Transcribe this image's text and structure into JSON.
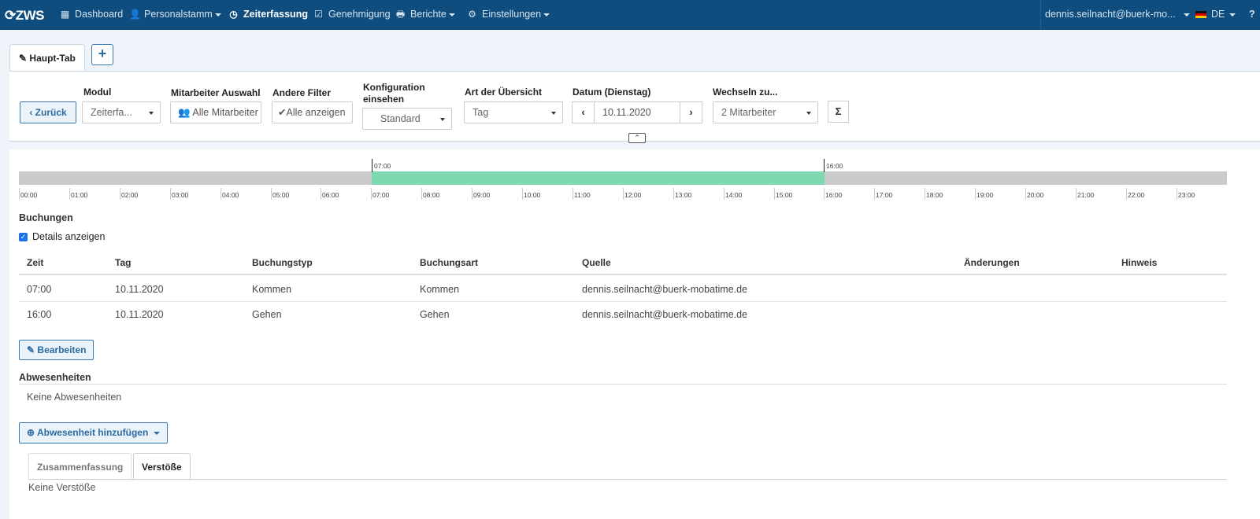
{
  "nav": {
    "logo": "ZWS",
    "items": [
      {
        "label": "Dashboard",
        "icon": "grid-icon"
      },
      {
        "label": "Personalstamm",
        "icon": "user-icon"
      },
      {
        "label": "Zeiterfassung",
        "icon": "clock-icon"
      },
      {
        "label": "Genehmigung",
        "icon": "check-square-icon"
      },
      {
        "label": "Berichte",
        "icon": "print-icon"
      },
      {
        "label": "Einstellungen",
        "icon": "gear-icon"
      }
    ],
    "user": "dennis.seilnacht@buerk-mo...",
    "language": "DE",
    "help": "?"
  },
  "tabs": {
    "main_tab": "Haupt-Tab",
    "add_tab": "+"
  },
  "filters": {
    "back_label": "Zurück",
    "modul_label": "Modul",
    "modul_value": "Zeiterfa...",
    "mitarbeiter_label": "Mitarbeiter Auswahl",
    "mitarbeiter_value": "Alle Mitarbeiter",
    "andere_label": "Andere Filter",
    "andere_value": "Alle anzeigen",
    "konfig_label_1": "Konfiguration",
    "konfig_label_2": "einsehen",
    "konfig_value": "Standard",
    "art_label": "Art der Übersicht",
    "art_value": "Tag",
    "datum_label": "Datum (Dienstag)",
    "datum_value": "10.11.2020",
    "wechseln_label": "Wechseln zu...",
    "wechseln_value": "2 Mitarbeiter",
    "sum_label": "Σ"
  },
  "timeline": {
    "start_label": "07:00",
    "end_label": "16:00",
    "hours": [
      "00:00",
      "01:00",
      "02:00",
      "03:00",
      "04:00",
      "05:00",
      "06:00",
      "07:00",
      "08:00",
      "09:00",
      "10:00",
      "11:00",
      "12:00",
      "13:00",
      "14:00",
      "15:00",
      "16:00",
      "17:00",
      "18:00",
      "19:00",
      "20:00",
      "21:00",
      "22:00",
      "23:00"
    ]
  },
  "buchungen": {
    "title": "Buchungen",
    "details_label": "Details anzeigen",
    "columns": [
      "Zeit",
      "Tag",
      "Buchungstyp",
      "Buchungsart",
      "Quelle",
      "Änderungen",
      "Hinweis"
    ],
    "rows": [
      {
        "zeit": "07:00",
        "tag": "10.11.2020",
        "typ": "Kommen",
        "art": "Kommen",
        "quelle": "dennis.seilnacht@buerk-mobatime.de"
      },
      {
        "zeit": "16:00",
        "tag": "10.11.2020",
        "typ": "Gehen",
        "art": "Gehen",
        "quelle": "dennis.seilnacht@buerk-mobatime.de"
      }
    ],
    "edit_label": "Bearbeiten"
  },
  "abwesenheiten": {
    "title": "Abwesenheiten",
    "empty": "Keine Abwesenheiten",
    "add_label": "Abwesenheit hinzufügen"
  },
  "summary_tabs": {
    "tab1": "Zusammenfassung",
    "tab2": "Verstöße",
    "empty": "Keine Verstöße"
  }
}
